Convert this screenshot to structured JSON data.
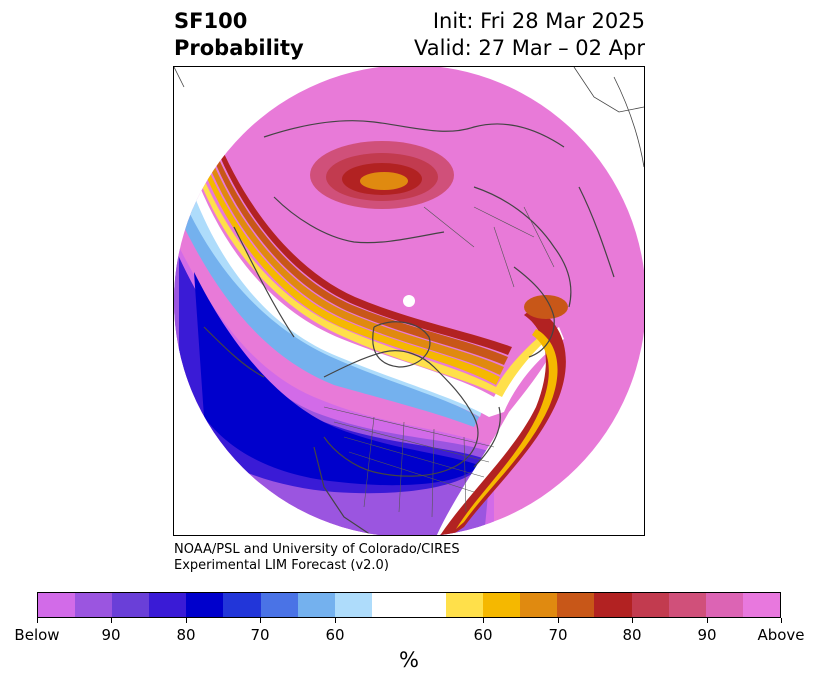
{
  "title": {
    "line1_left": "SF100",
    "line2_left": "Probability",
    "line1_right": "Init: Fri 28 Mar 2025",
    "line2_right": "Valid: 27 Mar – 02 Apr"
  },
  "credit": {
    "line1": "NOAA/PSL and University of Colorado/CIRES",
    "line2": "Experimental LIM Forecast (v2.0)"
  },
  "colorbar": {
    "colors": [
      "#d26be8",
      "#9b55e0",
      "#6a3fd8",
      "#3a1bd6",
      "#0000cc",
      "#2236d9",
      "#4a73e6",
      "#74b1ee",
      "#aedcfb",
      "#ffffff",
      "#ffffff",
      "#ffe04a",
      "#f5b800",
      "#e08a10",
      "#c85718",
      "#b22222",
      "#c23b4f",
      "#d0507a",
      "#dc64b4",
      "#e878de"
    ],
    "tick_labels": [
      "Below",
      "90",
      "80",
      "70",
      "60",
      "60",
      "70",
      "80",
      "90",
      "Above"
    ],
    "units": "%"
  },
  "map": {
    "projection": "polar-stereographic",
    "background_color": "#e87ad8"
  }
}
